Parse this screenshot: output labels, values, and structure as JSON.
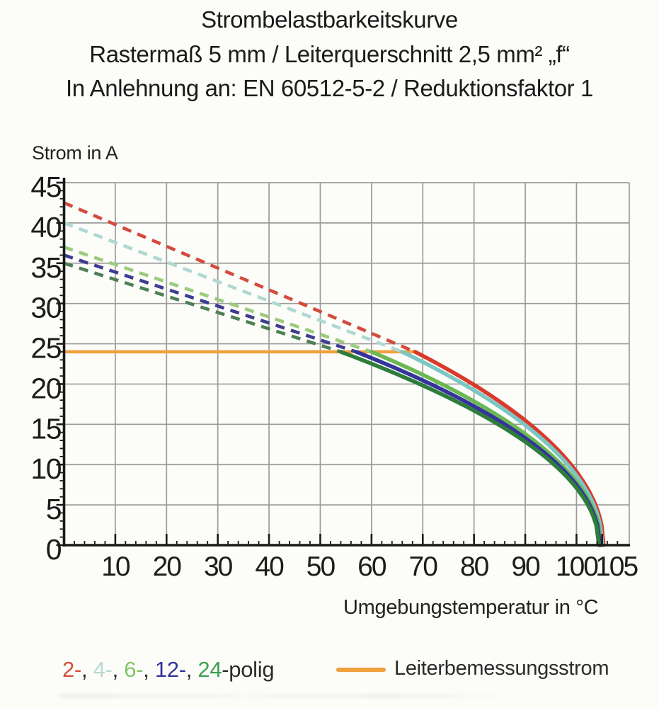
{
  "chart_data": {
    "type": "line",
    "title": "Strombelastbarkeitskurve",
    "subtitle": "Rastermaß 5 mm / Leiterquerschnitt 2,5 mm² „f“",
    "standard_note": "In Anlehnung an: EN 60512-5-2 / Reduktionsfaktor 1",
    "xlabel": "Umgebungstemperatur in °C",
    "ylabel": "Strom in A",
    "xlim": [
      0,
      110.3
    ],
    "ylim": [
      0,
      45
    ],
    "x_ticks": [
      10,
      20,
      30,
      40,
      50,
      60,
      70,
      80,
      90,
      100,
      105
    ],
    "y_ticks": [
      0,
      5,
      10,
      15,
      20,
      25,
      30,
      35,
      40,
      45
    ],
    "x_minor_step": 2,
    "y_minor_step": 1,
    "grid": {
      "x_lines": [
        10,
        20,
        30,
        40,
        50,
        60,
        70,
        80,
        90,
        100
      ],
      "y_lines": [
        5,
        10,
        15,
        20,
        25,
        30,
        35,
        40,
        45
      ],
      "right_border_t": 110.3,
      "color": "#9b9b9b"
    },
    "rated_current_line": {
      "label": "Leiterbemessungsstrom",
      "value_a": 24,
      "t_start": 0,
      "t_end": 68.5,
      "color": "#F0A03C"
    },
    "series": [
      {
        "name": "2-polig",
        "poles": 2,
        "color": "#D93A2B",
        "dash_color": "#D44A3C",
        "i_at_0c": 42.5,
        "knee_t": 68.5,
        "zero_t": 105.3
      },
      {
        "name": "4-polig",
        "poles": 4,
        "color": "#7CC6C4",
        "dash_color": "#AFD8D2",
        "i_at_0c": 40.0,
        "knee_t": 66.0,
        "zero_t": 105.05
      },
      {
        "name": "6-polig",
        "poles": 6,
        "color": "#6CB854",
        "dash_color": "#9BCB7D",
        "i_at_0c": 37.0,
        "knee_t": 60.0,
        "zero_t": 104.8
      },
      {
        "name": "12-polig",
        "poles": 12,
        "color": "#34349B",
        "dash_color": "#3D3D90",
        "i_at_0c": 36.0,
        "knee_t": 57.0,
        "zero_t": 104.6
      },
      {
        "name": "24-polig",
        "poles": 24,
        "color": "#2F7D3B",
        "dash_color": "#4D8055",
        "i_at_0c": 35.0,
        "knee_t": 54.0,
        "zero_t": 104.4
      }
    ],
    "curve_model": "dashed: linear from (0 °C, i_at_0c) to (knee_t, 24 A); solid: I(T)=24·sqrt((zero_t−T)/(zero_t−knee_t)); all currents in A, temperatures in °C",
    "legend_position": "bottom"
  },
  "legend": {
    "series_segments": [
      {
        "text": "2-",
        "color": "#D94F38"
      },
      {
        "text": ", ",
        "color": "#2B2B2B"
      },
      {
        "text": "4-",
        "color": "#B7DAD4"
      },
      {
        "text": ", ",
        "color": "#2B2B2B"
      },
      {
        "text": "6-",
        "color": "#85C468"
      },
      {
        "text": ", ",
        "color": "#2B2B2B"
      },
      {
        "text": "12-",
        "color": "#33339B"
      },
      {
        "text": ", ",
        "color": "#2B2B2B"
      },
      {
        "text": "24",
        "color": "#3EA04E"
      },
      {
        "text": "-polig",
        "color": "#2B2B2B"
      }
    ],
    "rated": {
      "label": "Leiterbemessungsstrom",
      "swatch_color": "#F0A03C"
    }
  },
  "style": {
    "axis_color": "#1a1a1a",
    "tick_label_color": "#1c1c1c",
    "background": "#fcfcf9"
  }
}
